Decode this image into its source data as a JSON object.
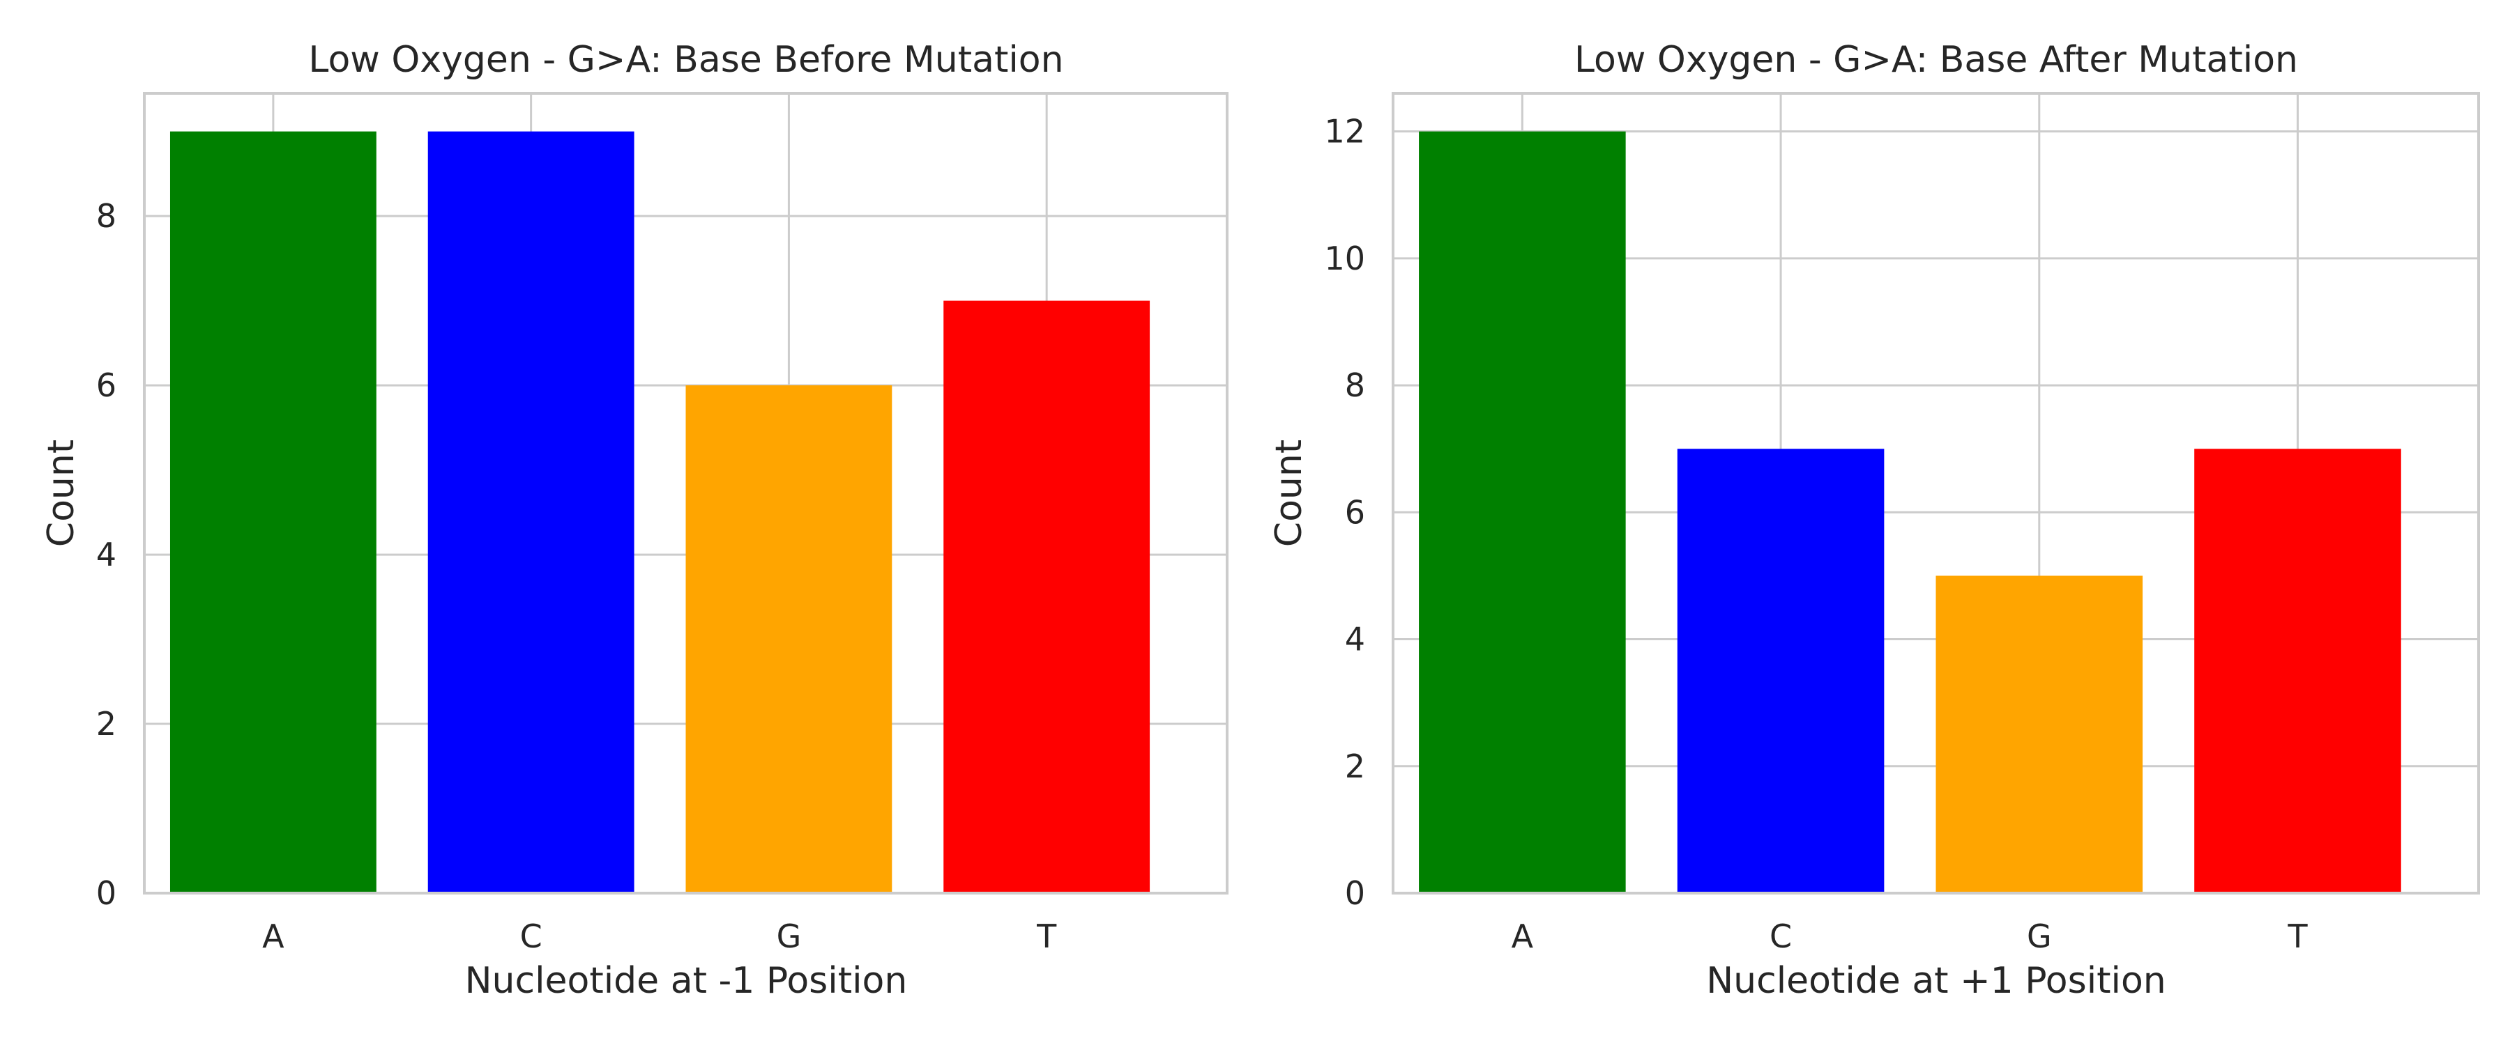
{
  "colors": {
    "A": "#008000",
    "C": "#0000ff",
    "G": "#ffa500",
    "T": "#ff0000",
    "grid": "#cccccc",
    "text": "#262626",
    "background": "#ffffff"
  },
  "chart_data": [
    {
      "type": "bar",
      "title": "Low Oxygen - G>A: Base Before Mutation",
      "xlabel": "Nucleotide at -1 Position",
      "ylabel": "Count",
      "categories": [
        "A",
        "C",
        "G",
        "T"
      ],
      "values": [
        9,
        9,
        6,
        7
      ],
      "bar_colors": [
        "#008000",
        "#0000ff",
        "#ffa500",
        "#ff0000"
      ],
      "ylim": [
        0,
        9.45
      ],
      "yticks": [
        0,
        2,
        4,
        6,
        8
      ],
      "grid": true,
      "legend": "none"
    },
    {
      "type": "bar",
      "title": "Low Oxygen - G>A: Base After Mutation",
      "xlabel": "Nucleotide at +1 Position",
      "ylabel": "Count",
      "categories": [
        "A",
        "C",
        "G",
        "T"
      ],
      "values": [
        12,
        7,
        5,
        7
      ],
      "bar_colors": [
        "#008000",
        "#0000ff",
        "#ffa500",
        "#ff0000"
      ],
      "ylim": [
        0,
        12.6
      ],
      "yticks": [
        0,
        2,
        4,
        6,
        8,
        10,
        12
      ],
      "grid": true,
      "legend": "none"
    }
  ]
}
